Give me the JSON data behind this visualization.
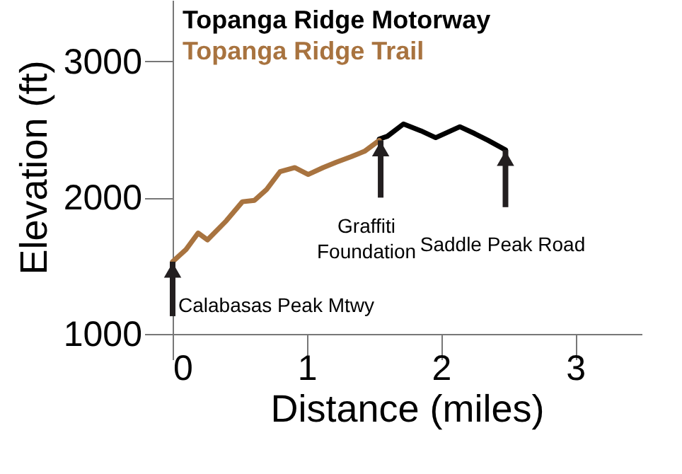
{
  "chart_data": {
    "type": "line",
    "xlabel": "Distance (miles)",
    "ylabel": "Elevation (ft)",
    "xlim": [
      0,
      3.5
    ],
    "xticks": [
      0,
      1,
      2,
      3
    ],
    "ylim": [
      1000,
      3450
    ],
    "yticks": [
      1000,
      2000,
      3000
    ],
    "grid": false,
    "legend": "top left",
    "marker": "none",
    "line_style": "solid",
    "series": [
      {
        "name": "Topanga Ridge Motorway",
        "color": "#000000",
        "x": [
          1.54,
          1.6,
          1.72,
          1.85,
          1.96,
          2.05,
          2.14,
          2.25,
          2.35,
          2.48
        ],
        "values": [
          2430,
          2450,
          2540,
          2490,
          2440,
          2480,
          2520,
          2470,
          2420,
          2350
        ]
      },
      {
        "name": "Topanga Ridge Trail",
        "color": "#a8733f",
        "x": [
          0,
          0.1,
          0.19,
          0.26,
          0.4,
          0.52,
          0.61,
          0.7,
          0.8,
          0.91,
          1.01,
          1.12,
          1.22,
          1.33,
          1.43,
          1.54
        ],
        "values": [
          1530,
          1620,
          1740,
          1690,
          1830,
          1970,
          1980,
          2060,
          2190,
          2220,
          2170,
          2220,
          2260,
          2300,
          2340,
          2420
        ]
      }
    ],
    "annotations": [
      {
        "text": "Calabasas Peak Mtwy",
        "x": 0,
        "y": 1530
      },
      {
        "text": "Graffiti\nFoundation",
        "x": 1.55,
        "y": 2420
      },
      {
        "text": "Saddle Peak Road",
        "x": 2.48,
        "y": 2350
      }
    ]
  }
}
